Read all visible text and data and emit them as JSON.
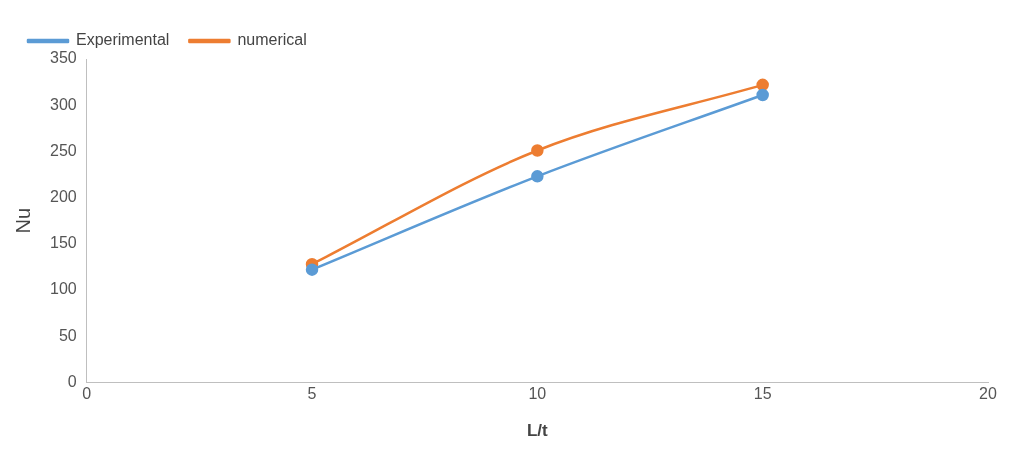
{
  "chart_data": {
    "type": "line",
    "xlabel": "L/t",
    "ylabel": "Nu",
    "x": [
      5,
      10,
      15
    ],
    "series": [
      {
        "name": "Experimental",
        "color": "#5b9bd5",
        "values": [
          122,
          223,
          311
        ]
      },
      {
        "name": "numerical",
        "color": "#ed7d31",
        "values": [
          128,
          251,
          322
        ]
      }
    ],
    "xlim": [
      0,
      20
    ],
    "xticks": [
      0,
      5,
      10,
      15,
      20
    ],
    "ylim": [
      0,
      350
    ],
    "yticks": [
      0,
      50,
      100,
      150,
      200,
      250,
      300,
      350
    ],
    "grid": false,
    "legend": "top left",
    "marker": "circle",
    "line_style": "solid"
  }
}
